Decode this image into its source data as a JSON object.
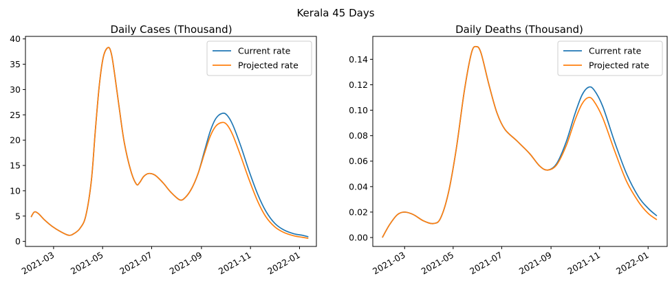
{
  "figure": {
    "suptitle": "Kerala 45 Days"
  },
  "colors": {
    "current": "#1f77b4",
    "projected": "#ff7f0e"
  },
  "chart_data": [
    {
      "type": "line",
      "title": "Daily Cases (Thousand)",
      "xlabel": "",
      "ylabel": "",
      "xlim": [
        "2021-01-25",
        "2022-01-22"
      ],
      "ylim": [
        -1.0,
        40.5
      ],
      "yticks": [
        0,
        5,
        10,
        15,
        20,
        25,
        30,
        35,
        40
      ],
      "xticks": [
        "2021-03",
        "2021-05",
        "2021-07",
        "2021-09",
        "2021-11",
        "2022-01"
      ],
      "legend": "top-right",
      "grid": false,
      "series": [
        {
          "name": "Current rate",
          "color": "#1f77b4",
          "points": [
            [
              "2021-02-01",
              4.8
            ],
            [
              "2021-02-05",
              5.8
            ],
            [
              "2021-02-10",
              5.5
            ],
            [
              "2021-02-18",
              4.2
            ],
            [
              "2021-02-27",
              3.0
            ],
            [
              "2021-03-10",
              1.9
            ],
            [
              "2021-03-20",
              1.2
            ],
            [
              "2021-03-27",
              1.6
            ],
            [
              "2021-04-03",
              2.6
            ],
            [
              "2021-04-10",
              5.0
            ],
            [
              "2021-04-17",
              12.0
            ],
            [
              "2021-04-22",
              22.0
            ],
            [
              "2021-04-27",
              31.0
            ],
            [
              "2021-05-02",
              36.5
            ],
            [
              "2021-05-08",
              38.3
            ],
            [
              "2021-05-12",
              37.0
            ],
            [
              "2021-05-16",
              33.0
            ],
            [
              "2021-05-22",
              26.0
            ],
            [
              "2021-05-28",
              19.5
            ],
            [
              "2021-06-05",
              14.0
            ],
            [
              "2021-06-12",
              11.3
            ],
            [
              "2021-06-16",
              11.6
            ],
            [
              "2021-06-21",
              12.8
            ],
            [
              "2021-06-27",
              13.4
            ],
            [
              "2021-07-05",
              13.1
            ],
            [
              "2021-07-15",
              11.6
            ],
            [
              "2021-07-25",
              9.7
            ],
            [
              "2021-08-05",
              8.2
            ],
            [
              "2021-08-12",
              8.7
            ],
            [
              "2021-08-20",
              10.5
            ],
            [
              "2021-08-28",
              13.5
            ],
            [
              "2021-09-05",
              18.0
            ],
            [
              "2021-09-12",
              21.8
            ],
            [
              "2021-09-19",
              24.3
            ],
            [
              "2021-09-27",
              25.3
            ],
            [
              "2021-10-03",
              24.9
            ],
            [
              "2021-10-10",
              23.0
            ],
            [
              "2021-10-20",
              18.8
            ],
            [
              "2021-10-30",
              14.0
            ],
            [
              "2021-11-10",
              9.3
            ],
            [
              "2021-11-20",
              6.0
            ],
            [
              "2021-12-01",
              3.6
            ],
            [
              "2021-12-12",
              2.3
            ],
            [
              "2021-12-25",
              1.5
            ],
            [
              "2022-01-05",
              1.2
            ],
            [
              "2022-01-12",
              0.9
            ]
          ]
        },
        {
          "name": "Projected rate",
          "color": "#ff7f0e",
          "points": [
            [
              "2021-02-01",
              4.8
            ],
            [
              "2021-02-05",
              5.8
            ],
            [
              "2021-02-10",
              5.5
            ],
            [
              "2021-02-18",
              4.2
            ],
            [
              "2021-02-27",
              3.0
            ],
            [
              "2021-03-10",
              1.9
            ],
            [
              "2021-03-20",
              1.2
            ],
            [
              "2021-03-27",
              1.6
            ],
            [
              "2021-04-03",
              2.6
            ],
            [
              "2021-04-10",
              5.0
            ],
            [
              "2021-04-17",
              12.0
            ],
            [
              "2021-04-22",
              22.0
            ],
            [
              "2021-04-27",
              31.0
            ],
            [
              "2021-05-02",
              36.5
            ],
            [
              "2021-05-08",
              38.3
            ],
            [
              "2021-05-12",
              37.0
            ],
            [
              "2021-05-16",
              33.0
            ],
            [
              "2021-05-22",
              26.0
            ],
            [
              "2021-05-28",
              19.5
            ],
            [
              "2021-06-05",
              14.0
            ],
            [
              "2021-06-12",
              11.3
            ],
            [
              "2021-06-16",
              11.6
            ],
            [
              "2021-06-21",
              12.8
            ],
            [
              "2021-06-27",
              13.4
            ],
            [
              "2021-07-05",
              13.1
            ],
            [
              "2021-07-15",
              11.6
            ],
            [
              "2021-07-25",
              9.7
            ],
            [
              "2021-08-05",
              8.2
            ],
            [
              "2021-08-12",
              8.7
            ],
            [
              "2021-08-20",
              10.5
            ],
            [
              "2021-08-28",
              13.5
            ],
            [
              "2021-09-05",
              17.5
            ],
            [
              "2021-09-12",
              20.8
            ],
            [
              "2021-09-19",
              22.8
            ],
            [
              "2021-09-27",
              23.5
            ],
            [
              "2021-10-03",
              23.0
            ],
            [
              "2021-10-10",
              21.0
            ],
            [
              "2021-10-20",
              16.8
            ],
            [
              "2021-10-30",
              12.3
            ],
            [
              "2021-11-10",
              7.9
            ],
            [
              "2021-11-20",
              4.9
            ],
            [
              "2021-12-01",
              2.9
            ],
            [
              "2021-12-12",
              1.8
            ],
            [
              "2021-12-25",
              1.1
            ],
            [
              "2022-01-05",
              0.8
            ],
            [
              "2022-01-12",
              0.6
            ]
          ]
        }
      ]
    },
    {
      "type": "line",
      "title": "Daily Deaths (Thousand)",
      "xlabel": "",
      "ylabel": "",
      "xlim": [
        "2021-01-20",
        "2022-01-25"
      ],
      "ylim": [
        -0.007,
        0.158
      ],
      "yticks": [
        0.0,
        0.02,
        0.04,
        0.06,
        0.08,
        0.1,
        0.12,
        0.14
      ],
      "yticklabels": [
        "0.00",
        "0.02",
        "0.04",
        "0.06",
        "0.08",
        "0.10",
        "0.12",
        "0.14"
      ],
      "xticks": [
        "2021-03",
        "2021-05",
        "2021-07",
        "2021-09",
        "2021-11",
        "2022-01"
      ],
      "legend": "top-right",
      "grid": false,
      "series": [
        {
          "name": "Current rate",
          "color": "#1f77b4",
          "points": [
            [
              "2021-02-01",
              0.0
            ],
            [
              "2021-02-10",
              0.01
            ],
            [
              "2021-02-20",
              0.018
            ],
            [
              "2021-03-01",
              0.02
            ],
            [
              "2021-03-12",
              0.018
            ],
            [
              "2021-03-25",
              0.013
            ],
            [
              "2021-04-06",
              0.011
            ],
            [
              "2021-04-15",
              0.015
            ],
            [
              "2021-04-25",
              0.035
            ],
            [
              "2021-05-05",
              0.07
            ],
            [
              "2021-05-15",
              0.115
            ],
            [
              "2021-05-24",
              0.145
            ],
            [
              "2021-05-30",
              0.15
            ],
            [
              "2021-06-05",
              0.145
            ],
            [
              "2021-06-15",
              0.12
            ],
            [
              "2021-06-25",
              0.098
            ],
            [
              "2021-07-05",
              0.085
            ],
            [
              "2021-07-20",
              0.076
            ],
            [
              "2021-08-05",
              0.066
            ],
            [
              "2021-08-18",
              0.056
            ],
            [
              "2021-08-28",
              0.053
            ],
            [
              "2021-09-08",
              0.058
            ],
            [
              "2021-09-20",
              0.075
            ],
            [
              "2021-10-01",
              0.097
            ],
            [
              "2021-10-10",
              0.112
            ],
            [
              "2021-10-18",
              0.118
            ],
            [
              "2021-10-25",
              0.116
            ],
            [
              "2021-11-05",
              0.103
            ],
            [
              "2021-11-20",
              0.075
            ],
            [
              "2021-12-05",
              0.05
            ],
            [
              "2021-12-20",
              0.032
            ],
            [
              "2022-01-01",
              0.023
            ],
            [
              "2022-01-12",
              0.017
            ]
          ]
        },
        {
          "name": "Projected rate",
          "color": "#ff7f0e",
          "points": [
            [
              "2021-02-01",
              0.0
            ],
            [
              "2021-02-10",
              0.01
            ],
            [
              "2021-02-20",
              0.018
            ],
            [
              "2021-03-01",
              0.02
            ],
            [
              "2021-03-12",
              0.018
            ],
            [
              "2021-03-25",
              0.013
            ],
            [
              "2021-04-06",
              0.011
            ],
            [
              "2021-04-15",
              0.015
            ],
            [
              "2021-04-25",
              0.035
            ],
            [
              "2021-05-05",
              0.07
            ],
            [
              "2021-05-15",
              0.115
            ],
            [
              "2021-05-24",
              0.145
            ],
            [
              "2021-05-30",
              0.15
            ],
            [
              "2021-06-05",
              0.145
            ],
            [
              "2021-06-15",
              0.12
            ],
            [
              "2021-06-25",
              0.098
            ],
            [
              "2021-07-05",
              0.085
            ],
            [
              "2021-07-20",
              0.076
            ],
            [
              "2021-08-05",
              0.066
            ],
            [
              "2021-08-18",
              0.056
            ],
            [
              "2021-08-28",
              0.053
            ],
            [
              "2021-09-08",
              0.057
            ],
            [
              "2021-09-20",
              0.072
            ],
            [
              "2021-10-01",
              0.092
            ],
            [
              "2021-10-10",
              0.105
            ],
            [
              "2021-10-18",
              0.11
            ],
            [
              "2021-10-25",
              0.107
            ],
            [
              "2021-11-05",
              0.094
            ],
            [
              "2021-11-20",
              0.068
            ],
            [
              "2021-12-05",
              0.044
            ],
            [
              "2021-12-20",
              0.028
            ],
            [
              "2022-01-01",
              0.019
            ],
            [
              "2022-01-12",
              0.014
            ]
          ]
        }
      ]
    }
  ]
}
